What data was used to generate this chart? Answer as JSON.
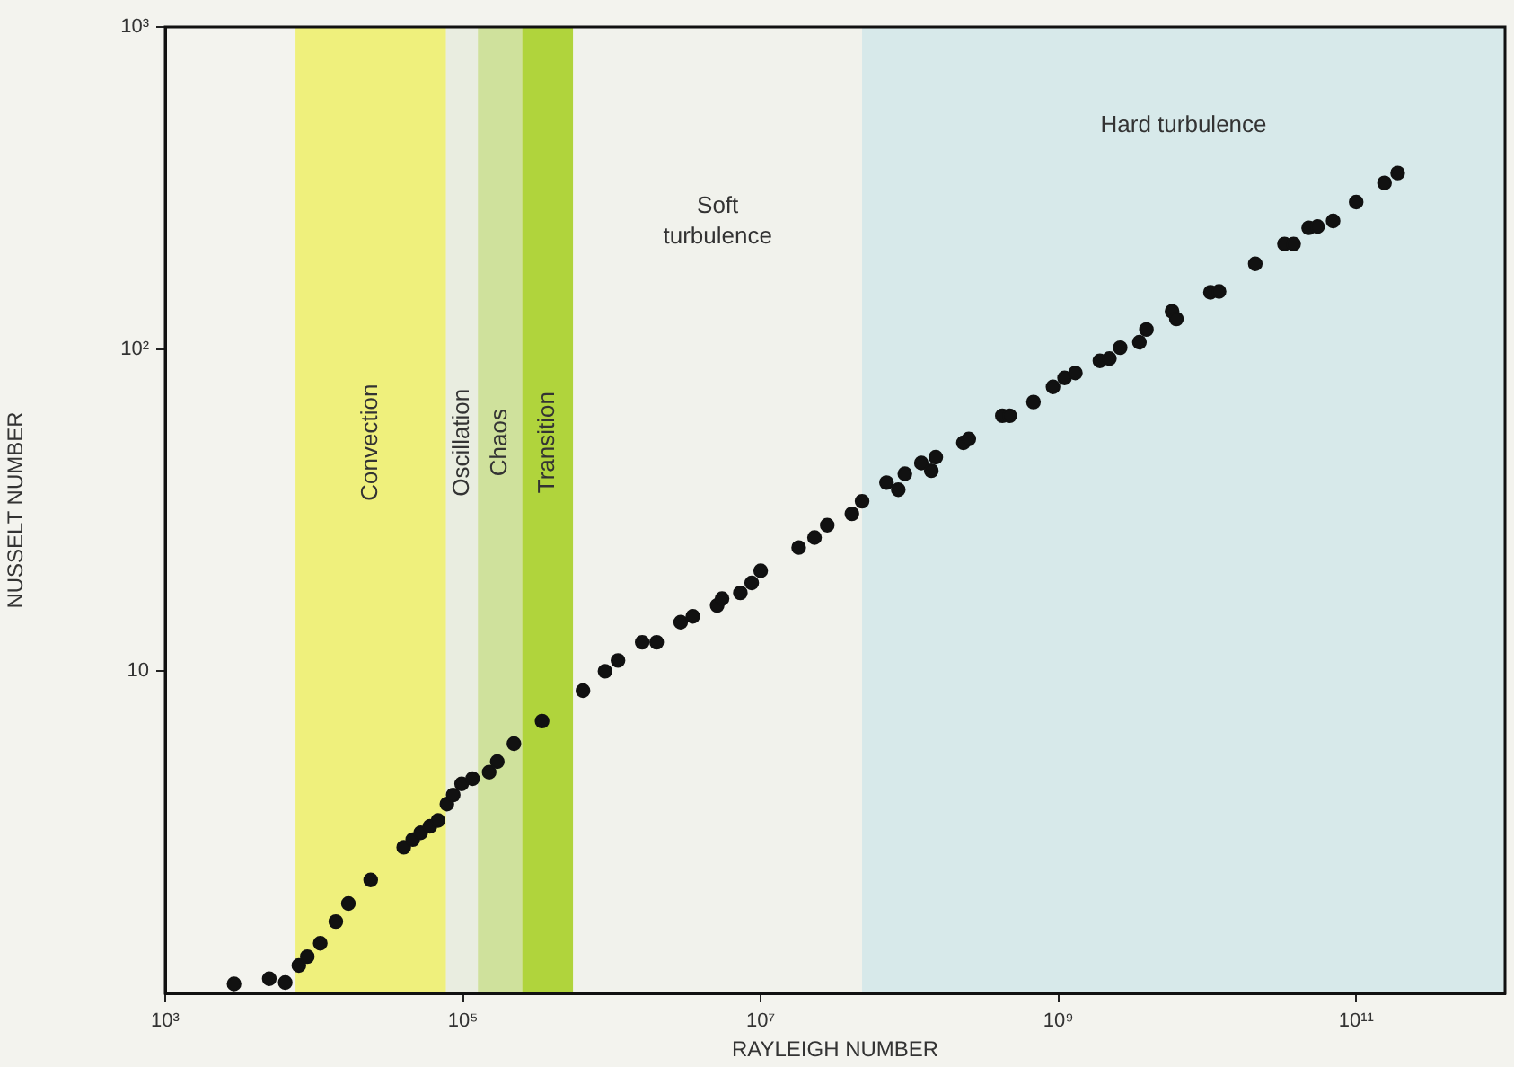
{
  "chart_data": {
    "type": "scatter",
    "xlabel": "RAYLEIGH NUMBER",
    "ylabel": "NUSSELT NUMBER",
    "log": "xy",
    "grid": false,
    "legend": false,
    "marker": "circle",
    "xlim": [
      1000,
      1000000000000
    ],
    "ylim": [
      1,
      1000
    ],
    "xticks": [
      {
        "value": 1000,
        "label": "10³"
      },
      {
        "value": 100000,
        "label": "10⁵"
      },
      {
        "value": 10000000,
        "label": "10⁷"
      },
      {
        "value": 1000000000,
        "label": "10⁹"
      },
      {
        "value": 100000000000,
        "label": "10¹¹"
      }
    ],
    "yticks": [
      {
        "value": 10,
        "label": "10"
      },
      {
        "value": 100,
        "label": "10²"
      },
      {
        "value": 1000,
        "label": "10³"
      }
    ],
    "bands": [
      {
        "axis": "x",
        "from": 7500,
        "to": 77000,
        "label": "Convection",
        "color": "#eff07c"
      },
      {
        "axis": "x",
        "from": 77000,
        "to": 126000,
        "label": "Oscillation",
        "color": "#e9ede0"
      },
      {
        "axis": "x",
        "from": 126000,
        "to": 250000,
        "label": "Chaos",
        "color": "#cfe19c"
      },
      {
        "axis": "x",
        "from": 250000,
        "to": 550000,
        "label": "Transition",
        "color": "#b0d43c"
      },
      {
        "axis": "x",
        "from": 550000,
        "to": 48000000,
        "label": "Soft turbulence",
        "color": "#f1f2ec"
      },
      {
        "axis": "x",
        "from": 48000000,
        "to": 1000000000000,
        "label": "Hard turbulence",
        "color": "#d7e9ea"
      }
    ],
    "series": [
      {
        "color": "#111111",
        "x": [
          2900,
          5000,
          6400,
          7900,
          9000,
          11000,
          14000,
          17000,
          24000,
          40000,
          46000,
          52000,
          60000,
          68000,
          78000,
          86000,
          98000,
          116000,
          150000,
          170000,
          220000,
          340000,
          640000,
          900000,
          1100000,
          1600000,
          2000000,
          2900000,
          3500000,
          5100000,
          5500000,
          7300000,
          8700000,
          10000000,
          18000000,
          23000000,
          28000000,
          41000000,
          48000000,
          70000000,
          84000000,
          93000000,
          120000000,
          140000000,
          150000000,
          230000000,
          250000000,
          420000000,
          470000000,
          680000000,
          920000000,
          1100000000,
          1300000000,
          1900000000,
          2200000000,
          2600000000,
          3500000000,
          3900000000,
          5800000000,
          6200000000,
          10500000000,
          12000000000,
          21000000000,
          33000000000,
          38000000000,
          48000000000,
          55000000000,
          70000000000,
          100000000000,
          155000000000,
          190000000000
        ],
        "values": [
          1.07,
          1.11,
          1.08,
          1.22,
          1.3,
          1.43,
          1.67,
          1.9,
          2.25,
          2.84,
          3.0,
          3.15,
          3.3,
          3.44,
          3.87,
          4.13,
          4.47,
          4.64,
          4.86,
          5.24,
          5.96,
          7.0,
          8.7,
          10,
          10.8,
          12.3,
          12.3,
          14.2,
          14.8,
          16.0,
          16.8,
          17.5,
          18.8,
          20.5,
          24.2,
          26.0,
          28.4,
          30.8,
          33.7,
          38.5,
          36.6,
          41,
          44.3,
          41.9,
          46.2,
          51.2,
          52.6,
          62.1,
          62.1,
          68.5,
          76.3,
          81.4,
          84.3,
          91.9,
          93.4,
          101,
          105,
          115,
          131,
          124,
          150,
          151,
          184,
          212,
          212,
          238,
          240,
          250,
          286,
          328,
          352
        ]
      }
    ]
  }
}
